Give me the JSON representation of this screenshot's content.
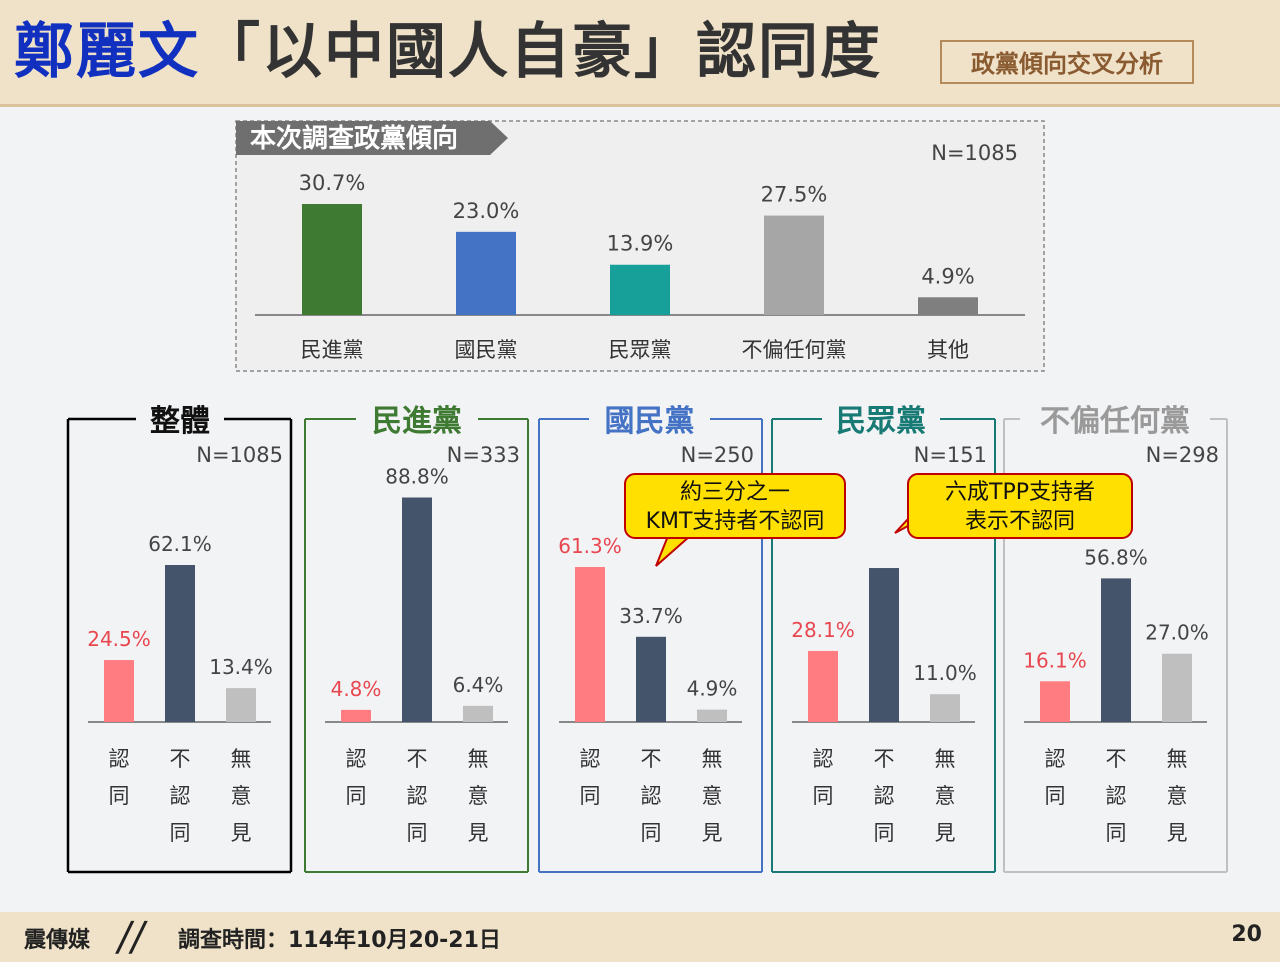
{
  "header": {
    "title_name": "鄭麗文",
    "title_rest": "「以中國人自豪」認同度",
    "tag": "政黨傾向交叉分析"
  },
  "footer": {
    "brand": "震傳媒",
    "date": "調查時間：114年10月20-21日",
    "page": "20"
  },
  "colors": {
    "dpp": "#3f7a32",
    "kmt": "#4472c4",
    "tpp": "#17a09a",
    "neutral": "#a6a6a6",
    "other": "#7f7f7f",
    "agree": "#ff7c80",
    "disagree": "#44546a",
    "noopinion": "#bfbfbf",
    "callout": "#ffe000"
  },
  "chart_data": [
    {
      "type": "bar",
      "title": "本次調查政黨傾向",
      "n_label": "N=1085",
      "categories": [
        "民進黨",
        "國民黨",
        "民眾黨",
        "不偏任何黨",
        "其他"
      ],
      "values": [
        30.7,
        23.0,
        13.9,
        27.5,
        4.9
      ],
      "value_labels": [
        "30.7%",
        "23.0%",
        "13.9%",
        "27.5%",
        "4.9%"
      ],
      "ylim": [
        0,
        35
      ]
    },
    {
      "type": "bar",
      "panels": [
        {
          "title": "整體",
          "n_label": "N=1085",
          "values": [
            24.5,
            62.1,
            13.4
          ],
          "value_labels": [
            "24.5%",
            "62.1%",
            "13.4%"
          ]
        },
        {
          "title": "民進黨",
          "n_label": "N=333",
          "values": [
            4.8,
            88.8,
            6.4
          ],
          "value_labels": [
            "4.8%",
            "88.8%",
            "6.4%"
          ]
        },
        {
          "title": "國民黨",
          "n_label": "N=250",
          "values": [
            61.3,
            33.7,
            4.9
          ],
          "value_labels": [
            "61.3%",
            "33.7%",
            "4.9%"
          ]
        },
        {
          "title": "民眾黨",
          "n_label": "N=151",
          "values": [
            28.1,
            60.9,
            11.0
          ],
          "value_labels": [
            "28.1%",
            "",
            "11.0%"
          ]
        },
        {
          "title": "不偏任何黨",
          "n_label": "N=298",
          "values": [
            16.1,
            56.8,
            27.0
          ],
          "value_labels": [
            "16.1%",
            "56.8%",
            "27.0%"
          ]
        }
      ],
      "categories": [
        "認同",
        "不認同",
        "無意見"
      ],
      "ylim": [
        0,
        100
      ],
      "callouts": [
        {
          "line1": "約三分之一",
          "line2": "KMT支持者不認同"
        },
        {
          "line1": "六成TPP支持者",
          "line2": "表示不認同"
        }
      ]
    }
  ]
}
